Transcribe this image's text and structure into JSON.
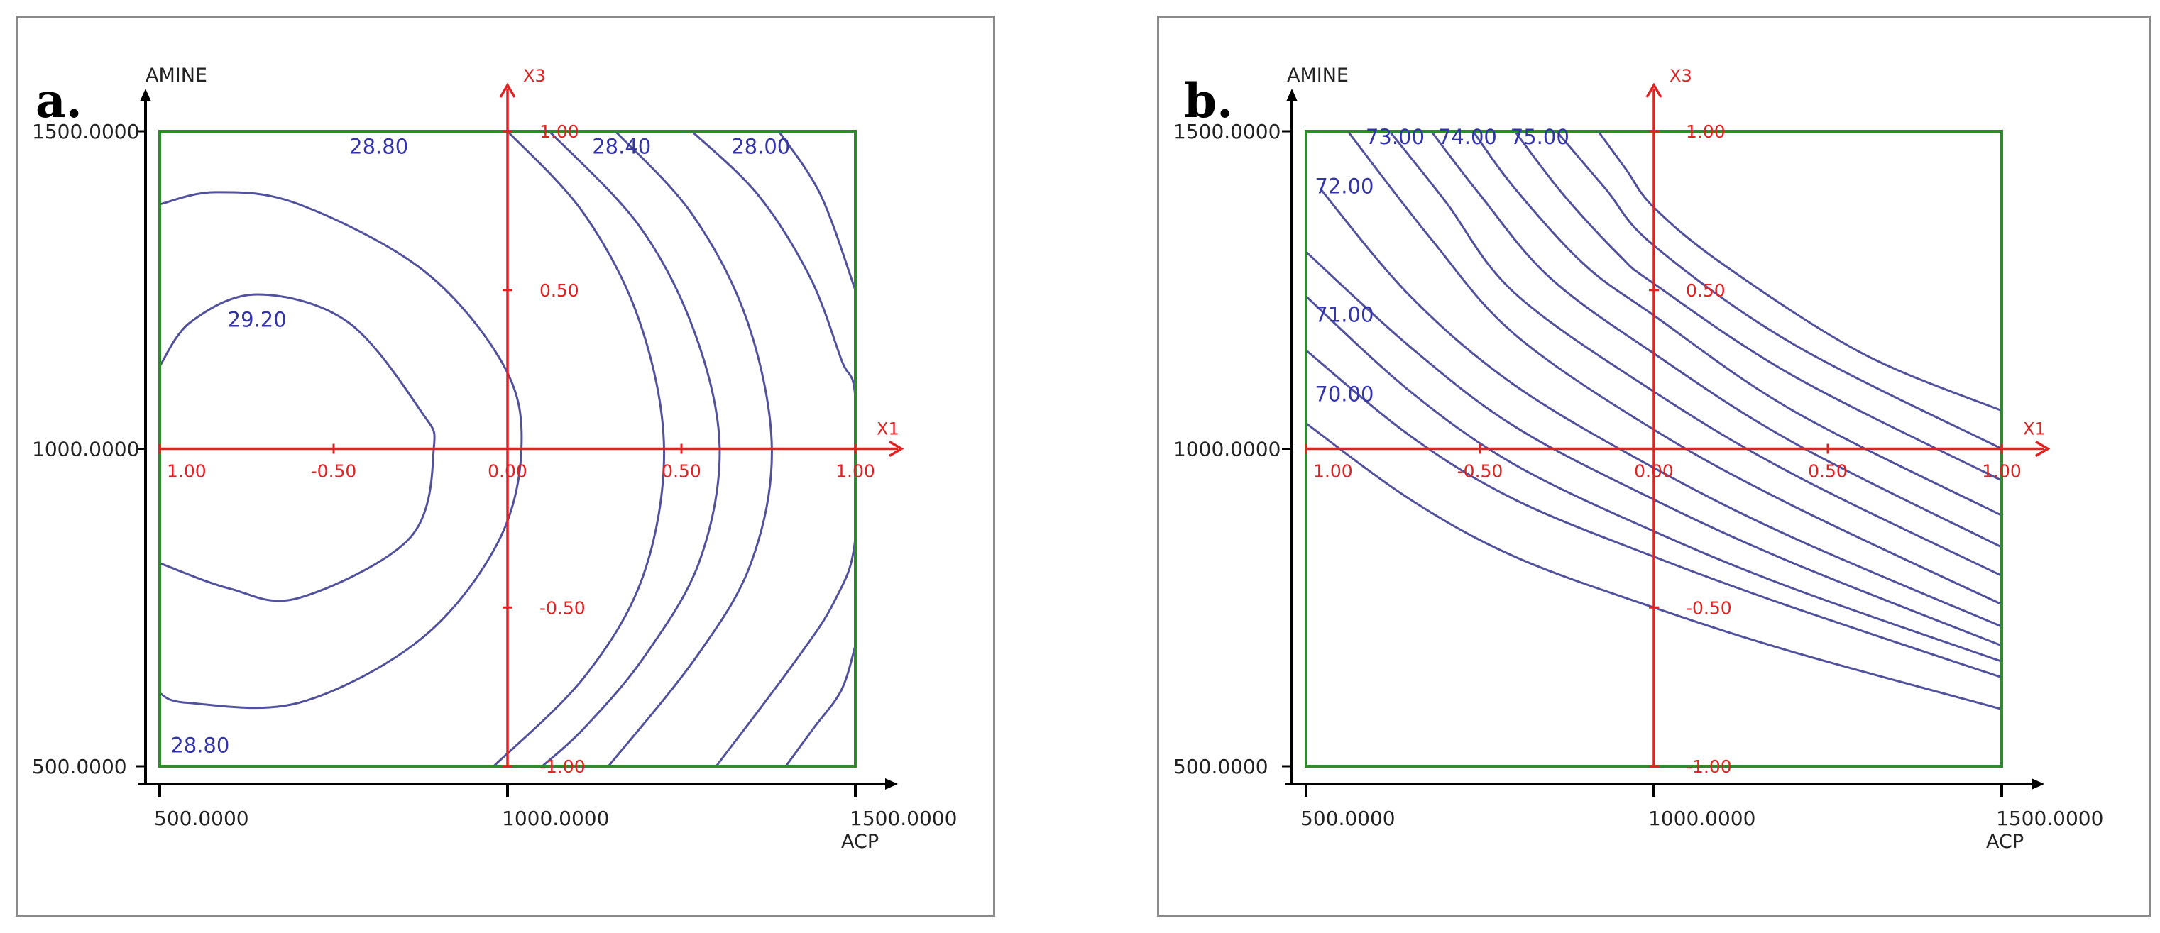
{
  "colors": {
    "contour": "#52529c",
    "coded_axes": "#e02222",
    "frame": "#2f8a2f",
    "axes": "#000000",
    "contour_label": "#3434aa"
  },
  "chart_data": [
    {
      "type": "contour",
      "panel_label": "a.",
      "xlabel": "ACP",
      "ylabel": "AMINE",
      "xlim": [
        500,
        1500
      ],
      "ylim": [
        500,
        1500
      ],
      "x_ticks": [
        "500.0000",
        "1000.0000",
        "1500.0000"
      ],
      "y_ticks": [
        "500.0000",
        "1000.0000",
        "1500.0000"
      ],
      "coded_x_axis": {
        "label": "X1",
        "ticks": [
          "1.00",
          "-0.50",
          "0.00",
          "0.50",
          "1.00"
        ]
      },
      "coded_y_axis": {
        "label": "X3",
        "ticks": [
          "1.00",
          "0.50",
          "-0.50",
          "-1.00"
        ]
      },
      "contour_labels": [
        {
          "text": "28.80",
          "x": 815,
          "y": 1465
        },
        {
          "text": "28.40",
          "x": 1164,
          "y": 1465
        },
        {
          "text": "28.00",
          "x": 1364,
          "y": 1465
        },
        {
          "text": "29.20",
          "x": 640,
          "y": 1192
        },
        {
          "text": "28.80",
          "x": 558,
          "y": 522
        }
      ],
      "contours": [
        {
          "level": 29.2,
          "points": [
            [
              500,
              1130
            ],
            [
              545,
              1200
            ],
            [
              640,
              1243
            ],
            [
              770,
              1200
            ],
            [
              875,
              1060
            ],
            [
              894,
              1000
            ],
            [
              860,
              860
            ],
            [
              700,
              765
            ],
            [
              600,
              780
            ],
            [
              500,
              820
            ]
          ]
        },
        {
          "level": 28.8,
          "points": [
            [
              500,
              1385
            ],
            [
              580,
              1404
            ],
            [
              700,
              1385
            ],
            [
              880,
              1280
            ],
            [
              995,
              1130
            ],
            [
              1020,
              1000
            ],
            [
              985,
              850
            ],
            [
              875,
              700
            ],
            [
              700,
              600
            ],
            [
              540,
              600
            ],
            [
              500,
              615
            ]
          ]
        },
        {
          "level": 28.6,
          "points": [
            [
              1000,
              1500
            ],
            [
              1110,
              1370
            ],
            [
              1190,
              1200
            ],
            [
              1225,
              1000
            ],
            [
              1195,
              800
            ],
            [
              1110,
              640
            ],
            [
              980,
              500
            ]
          ]
        },
        {
          "level": 28.4,
          "points": [
            [
              1060,
              1500
            ],
            [
              1190,
              1350
            ],
            [
              1270,
              1180
            ],
            [
              1305,
              1000
            ],
            [
              1275,
              820
            ],
            [
              1195,
              670
            ],
            [
              1110,
              560
            ],
            [
              1050,
              500
            ]
          ]
        },
        {
          "level": 28.2,
          "points": [
            [
              1155,
              1500
            ],
            [
              1265,
              1370
            ],
            [
              1345,
              1200
            ],
            [
              1380,
              1000
            ],
            [
              1350,
              820
            ],
            [
              1270,
              670
            ],
            [
              1145,
              500
            ]
          ]
        },
        {
          "level": 28.0,
          "points": [
            [
              1265,
              1500
            ],
            [
              1360,
              1400
            ],
            [
              1435,
              1270
            ],
            [
              1480,
              1140
            ],
            [
              1500,
              1080
            ],
            [
              1500,
              860
            ],
            [
              1470,
              760
            ],
            [
              1410,
              660
            ],
            [
              1300,
              500
            ]
          ]
        },
        {
          "level": 27.8,
          "points": [
            [
              1390,
              1500
            ],
            [
              1450,
              1400
            ],
            [
              1500,
              1250
            ]
          ]
        },
        {
          "level": 27.8,
          "points": [
            [
              1500,
              690
            ],
            [
              1480,
              620
            ],
            [
              1440,
              560
            ],
            [
              1400,
              500
            ]
          ]
        }
      ]
    },
    {
      "type": "contour",
      "panel_label": "b.",
      "xlabel": "ACP",
      "ylabel": "AMINE",
      "xlim": [
        500,
        1500
      ],
      "ylim": [
        500,
        1500
      ],
      "x_ticks": [
        "500.0000",
        "1000.0000",
        "1500.0000"
      ],
      "y_ticks": [
        "500.0000",
        "1000.0000",
        "1500.0000"
      ],
      "coded_x_axis": {
        "label": "X1",
        "ticks": [
          "1.00",
          "-0.50",
          "0.00",
          "0.50",
          "1.00"
        ]
      },
      "coded_y_axis": {
        "label": "X3",
        "ticks": [
          "1.00",
          "0.50",
          "-0.50",
          "-1.00"
        ]
      },
      "contour_labels": [
        {
          "text": "73.00",
          "x": 628,
          "y": 1480
        },
        {
          "text": "74.00",
          "x": 732,
          "y": 1480
        },
        {
          "text": "75.00",
          "x": 836,
          "y": 1480
        },
        {
          "text": "72.00",
          "x": 555,
          "y": 1402
        },
        {
          "text": "71.00",
          "x": 555,
          "y": 1200
        },
        {
          "text": "70.00",
          "x": 555,
          "y": 1075
        }
      ],
      "contours": [
        {
          "level": 69.5,
          "points": [
            [
              500,
              1040
            ],
            [
              650,
              920
            ],
            [
              800,
              830
            ],
            [
              1000,
              750
            ],
            [
              1200,
              680
            ],
            [
              1500,
              590
            ]
          ]
        },
        {
          "level": 70.0,
          "points": [
            [
              500,
              1155
            ],
            [
              650,
              1020
            ],
            [
              800,
              920
            ],
            [
              1000,
              830
            ],
            [
              1200,
              750
            ],
            [
              1500,
              640
            ]
          ]
        },
        {
          "level": 70.5,
          "points": [
            [
              500,
              1240
            ],
            [
              650,
              1090
            ],
            [
              800,
              975
            ],
            [
              1000,
              870
            ],
            [
              1200,
              780
            ],
            [
              1500,
              665
            ]
          ]
        },
        {
          "level": 71.0,
          "points": [
            [
              500,
              1310
            ],
            [
              650,
              1160
            ],
            [
              800,
              1035
            ],
            [
              1000,
              920
            ],
            [
              1200,
              820
            ],
            [
              1500,
              690
            ]
          ]
        },
        {
          "level": 71.5,
          "points": [
            [
              520,
              1410
            ],
            [
              650,
              1240
            ],
            [
              800,
              1100
            ],
            [
              1000,
              970
            ],
            [
              1200,
              860
            ],
            [
              1500,
              720
            ]
          ]
        },
        {
          "level": 72.0,
          "points": [
            [
              560,
              1500
            ],
            [
              680,
              1330
            ],
            [
              800,
              1180
            ],
            [
              1000,
              1030
            ],
            [
              1200,
              910
            ],
            [
              1500,
              755
            ]
          ]
        },
        {
          "level": 72.5,
          "points": [
            [
              620,
              1500
            ],
            [
              700,
              1390
            ],
            [
              800,
              1245
            ],
            [
              1000,
              1090
            ],
            [
              1200,
              960
            ],
            [
              1500,
              800
            ]
          ]
        },
        {
          "level": 73.0,
          "points": [
            [
              680,
              1500
            ],
            [
              750,
              1400
            ],
            [
              850,
              1270
            ],
            [
              1000,
              1150
            ],
            [
              1200,
              1010
            ],
            [
              1500,
              845
            ]
          ]
        },
        {
          "level": 73.5,
          "points": [
            [
              740,
              1500
            ],
            [
              800,
              1410
            ],
            [
              900,
              1290
            ],
            [
              1000,
              1210
            ],
            [
              1200,
              1060
            ],
            [
              1500,
              895
            ]
          ]
        },
        {
          "level": 74.0,
          "points": [
            [
              800,
              1500
            ],
            [
              870,
              1400
            ],
            [
              950,
              1305
            ],
            [
              1000,
              1260
            ],
            [
              1200,
              1115
            ],
            [
              1500,
              950
            ]
          ]
        },
        {
          "level": 74.5,
          "points": [
            [
              860,
              1500
            ],
            [
              930,
              1410
            ],
            [
              1000,
              1320
            ],
            [
              1200,
              1165
            ],
            [
              1500,
              1000
            ]
          ]
        },
        {
          "level": 75.0,
          "points": [
            [
              920,
              1500
            ],
            [
              960,
              1440
            ],
            [
              1000,
              1380
            ],
            [
              1100,
              1290
            ],
            [
              1300,
              1150
            ],
            [
              1500,
              1060
            ]
          ]
        }
      ]
    }
  ]
}
